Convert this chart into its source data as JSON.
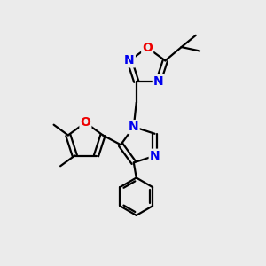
{
  "background_color": "#ebebeb",
  "bond_color": "#000000",
  "N_color": "#0000ee",
  "O_color": "#ee0000",
  "line_width": 1.6,
  "dbo": 0.09,
  "font_size_atom": 10,
  "fig_width": 3.0,
  "fig_height": 3.0,
  "dpi": 100,
  "xlim": [
    0,
    10
  ],
  "ylim": [
    0,
    10
  ]
}
